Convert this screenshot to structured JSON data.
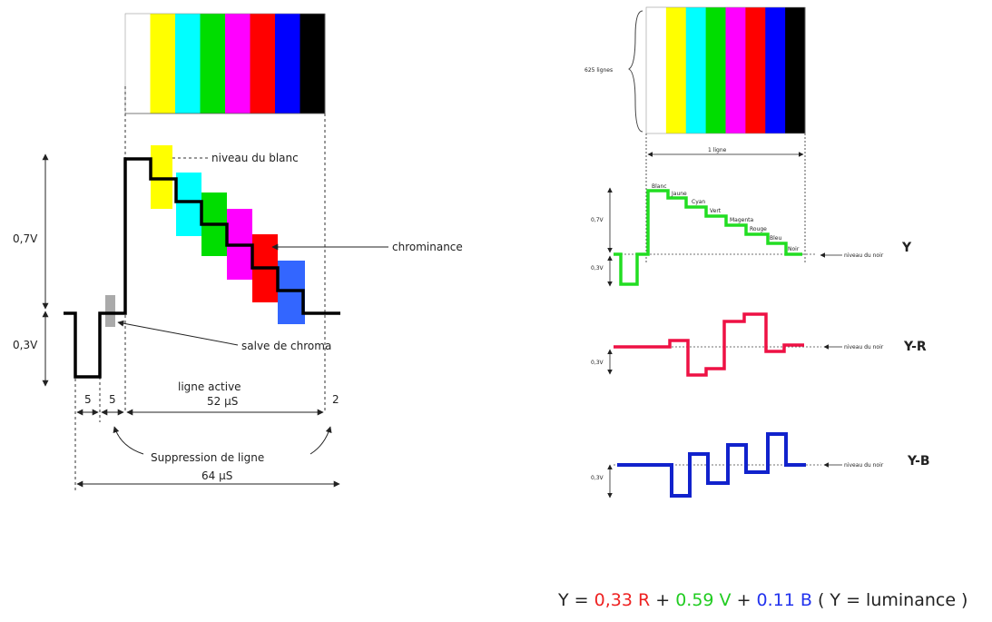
{
  "colors": {
    "bars": [
      "#ffffff",
      "#ffff00",
      "#00ffff",
      "#00dd00",
      "#ff00ff",
      "#ff0000",
      "#0000ff",
      "#000000"
    ],
    "y_signal": "#22dd22",
    "ry_signal": "#ee1144",
    "by_signal": "#1122cc",
    "black": "#000000"
  },
  "left": {
    "niveau_blanc": "niveau du blanc",
    "chrominance": "chrominance",
    "salve": "salve de chroma",
    "v07": "0,7V",
    "v03": "0,3V",
    "ligne_active": "ligne active",
    "t52": "52 µS",
    "t5a": "5",
    "t5b": "5",
    "t2": "2",
    "suppression": "Suppression de ligne",
    "t64": "64 µS"
  },
  "right": {
    "lignes_625": "625 lignes",
    "une_ligne": "1 ligne",
    "bar_names": [
      "Blanc",
      "Jaune",
      "Cyan",
      "Vert",
      "Magenta",
      "Rouge",
      "Bleu",
      "Noir"
    ],
    "y_07": "0,7V",
    "y_03": "0,3V",
    "ry_03": "0,3V",
    "by_03": "0,3V",
    "niveau_noir_1": "niveau du noir",
    "niveau_noir_2": "niveau du noir",
    "niveau_noir_3": "niveau du noir",
    "label_y": "Y",
    "label_ry": "Y-R",
    "label_by": "Y-B"
  },
  "formula": {
    "y": "Y",
    "eq": "=",
    "r_coef": "0,33 R",
    "plus1": "+",
    "v_coef": "0.59 V",
    "plus2": "+",
    "b_coef": "0.11 B",
    "paren": "( Y = luminance )"
  }
}
